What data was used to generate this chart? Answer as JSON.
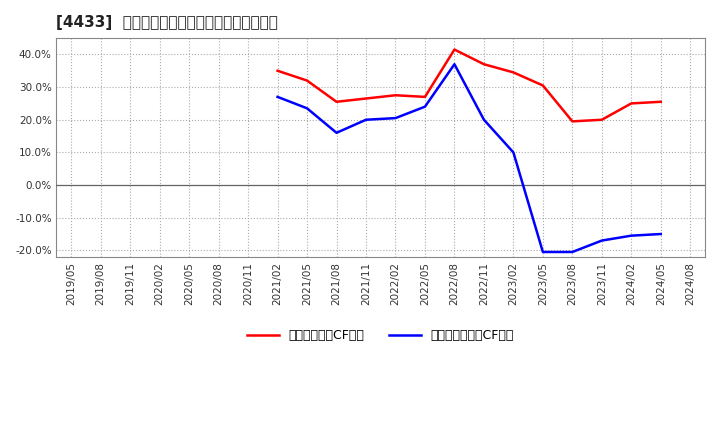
{
  "title": "[4433]  流動負債キャッシュフロー比率の推移",
  "legend_labels": [
    "流動負債営業CF比率",
    "流動負債フリーCF比率"
  ],
  "line_colors": [
    "#ff0000",
    "#0000ff"
  ],
  "ylim": [
    -0.22,
    0.45
  ],
  "yticks": [
    -0.2,
    -0.1,
    0.0,
    0.1,
    0.2,
    0.3,
    0.4
  ],
  "background_color": "#ffffff",
  "grid_color": "#aaaaaa",
  "red_x": [
    "2021/02",
    "2021/05",
    "2021/08",
    "2021/11",
    "2022/02",
    "2022/05",
    "2022/08",
    "2022/11",
    "2023/02",
    "2023/05",
    "2023/08",
    "2023/11",
    "2024/02",
    "2024/05"
  ],
  "red_y": [
    0.35,
    0.32,
    0.255,
    0.265,
    0.275,
    0.27,
    0.415,
    0.37,
    0.345,
    0.305,
    0.195,
    0.2,
    0.25,
    0.255
  ],
  "blue_x": [
    "2021/02",
    "2021/05",
    "2021/08",
    "2021/11",
    "2022/02",
    "2022/05",
    "2022/08",
    "2022/11",
    "2023/02",
    "2023/05",
    "2023/08",
    "2023/11",
    "2024/02",
    "2024/05"
  ],
  "blue_y": [
    0.27,
    0.235,
    0.16,
    0.2,
    0.205,
    0.24,
    0.37,
    0.2,
    0.1,
    -0.205,
    -0.205,
    -0.17,
    -0.155,
    -0.15
  ],
  "xtick_labels": [
    "2019/05",
    "2019/08",
    "2019/11",
    "2020/02",
    "2020/05",
    "2020/08",
    "2020/11",
    "2021/02",
    "2021/05",
    "2021/08",
    "2021/11",
    "2022/02",
    "2022/05",
    "2022/08",
    "2022/11",
    "2023/02",
    "2023/05",
    "2023/08",
    "2023/11",
    "2024/02",
    "2024/05",
    "2024/08"
  ]
}
